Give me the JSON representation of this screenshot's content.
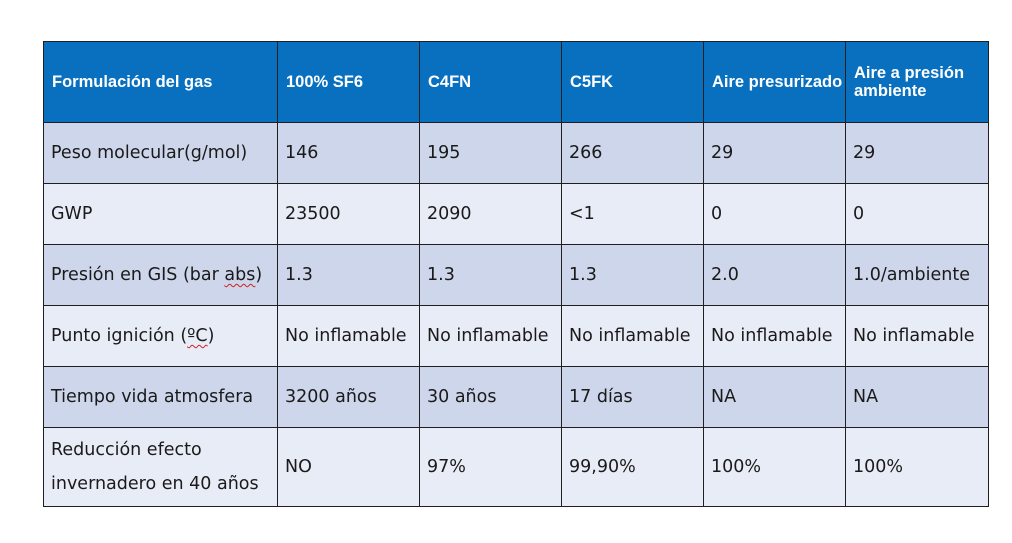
{
  "table": {
    "headers": [
      "Formulación del gas",
      "100% SF6",
      "C4FN",
      "C5FK",
      "Aire presurizado",
      "Aire a presión ambiente"
    ],
    "rows": [
      {
        "label": "Peso molecular(g/mol)",
        "values": [
          "146",
          "195",
          "266",
          "29",
          "29"
        ]
      },
      {
        "label_before": "GWP",
        "values": [
          "23500",
          "2090",
          "<1",
          "0",
          "0"
        ]
      },
      {
        "label_before": "Presión en GIS (bar ",
        "label_marked": "abs",
        "label_after": ")",
        "values": [
          "1.3",
          "1.3",
          "1.3",
          "2.0",
          "1.0/ambiente"
        ]
      },
      {
        "label_before": "Punto ignición (",
        "label_marked": "ºC",
        "label_after": ")",
        "values": [
          "No inflamable",
          "No inflamable",
          "No inflamable",
          "No inflamable",
          "No inflamable"
        ]
      },
      {
        "label": "Tiempo vida atmosfera",
        "values": [
          "3200 años",
          "30 años",
          "17 días",
          "NA",
          "NA"
        ]
      },
      {
        "label": "Reducción efecto invernadero en 40 años",
        "values": [
          "NO",
          "97%",
          "99,90%",
          "100%",
          "100%"
        ]
      }
    ]
  },
  "colors": {
    "header_background": "#0970c0",
    "row_band_dark": "#cdd6ea",
    "row_band_light": "#e8ecf6",
    "spellcheck_underline": "#d02020"
  }
}
